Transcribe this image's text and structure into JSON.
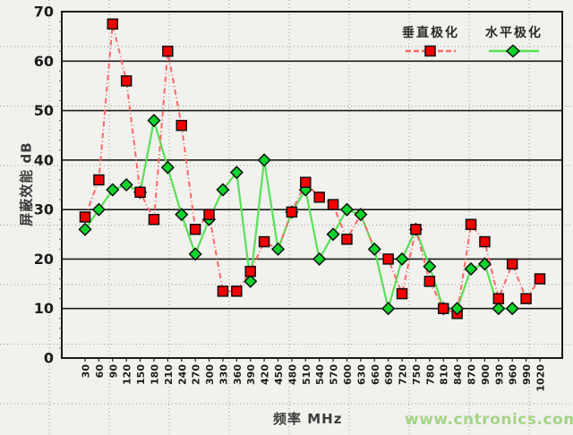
{
  "watermark": "www.cntronics.com",
  "axes": {
    "y_title": "屏蔽效能  dB",
    "x_title": "频率  MHz",
    "y_ticks": [
      0,
      10,
      20,
      30,
      40,
      50,
      60,
      70
    ],
    "ylim": [
      0,
      70
    ]
  },
  "legend": [
    {
      "label": "垂直极化",
      "marker": "square",
      "marker_color": "#f40000",
      "line_color": "#ff6666",
      "line_style": "dashed"
    },
    {
      "label": "水平极化",
      "marker": "diamond",
      "marker_color": "#0fd42c",
      "line_color": "#57e257",
      "line_style": "solid"
    }
  ],
  "colors": {
    "background": "#f1f1ed",
    "grid_solid": "#1a1a1a",
    "grid_dotted": "#9a9a96",
    "tick_text": "#1c1c1c",
    "red_marker": "#f40000",
    "red_line": "#ff6666",
    "green_marker": "#0fd42c",
    "green_line": "#57e257",
    "watermark_green": "#a6d388"
  },
  "chart_data": {
    "type": "line",
    "title": "",
    "xlabel": "频率 MHz",
    "ylabel": "屏蔽效能 dB",
    "ylim": [
      0,
      70
    ],
    "grid": true,
    "legend_position": "top-right",
    "x": [
      30,
      60,
      90,
      120,
      150,
      180,
      210,
      240,
      270,
      300,
      330,
      360,
      390,
      420,
      450,
      480,
      510,
      540,
      570,
      600,
      630,
      660,
      690,
      720,
      750,
      780,
      810,
      840,
      870,
      900,
      930,
      960,
      990,
      1020
    ],
    "series": [
      {
        "name": "垂直极化",
        "marker": "square",
        "values": [
          28.5,
          36,
          67.5,
          56,
          33.5,
          28,
          62,
          47,
          26,
          29,
          13.5,
          13.5,
          17.5,
          23.5,
          22,
          29.5,
          35.5,
          32.5,
          31,
          24,
          29,
          22,
          20,
          13,
          26,
          15.5,
          10,
          9,
          27,
          23.5,
          12,
          19,
          12,
          16
        ],
        "hidden_marker_indices": [
          14,
          20,
          21
        ]
      },
      {
        "name": "水平极化",
        "marker": "diamond",
        "values": [
          26,
          30,
          34,
          35,
          33.5,
          48,
          38.5,
          29,
          21,
          28,
          34,
          37.5,
          15.5,
          40,
          22,
          29.5,
          34,
          20,
          25,
          30,
          29,
          22,
          10,
          20,
          26,
          18.5,
          10,
          10,
          18,
          19,
          10,
          10,
          null,
          null
        ],
        "overlay_marker_indices": [
          27
        ]
      }
    ]
  }
}
